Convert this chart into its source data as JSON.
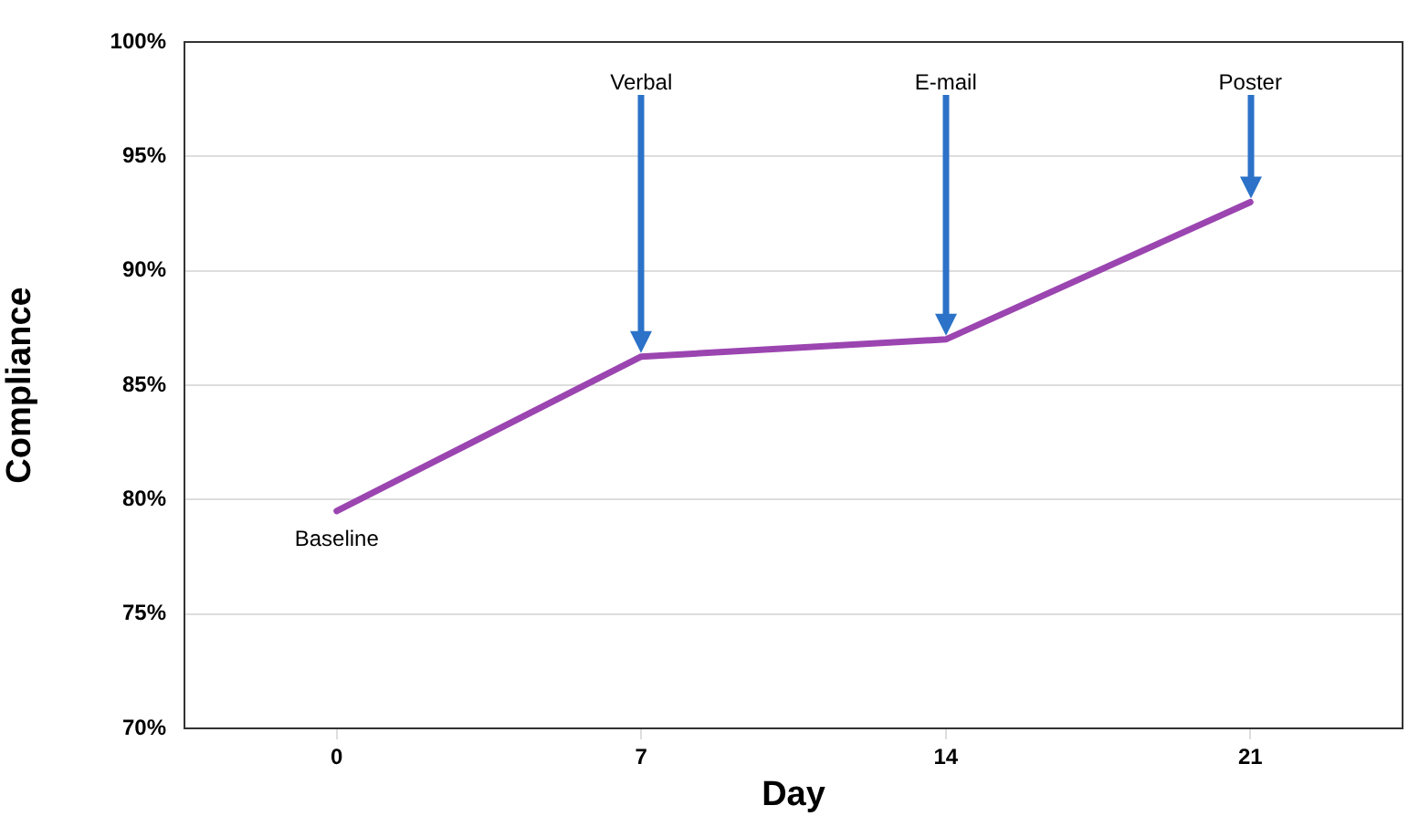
{
  "chart_data": {
    "type": "line",
    "xlabel": "Day",
    "ylabel": "Compliance",
    "x": [
      0,
      7,
      14,
      21
    ],
    "series": [
      {
        "color": "#9b45b0",
        "values": [
          79.5,
          86.25,
          87.0,
          93.0
        ]
      }
    ],
    "xlim": [
      -3.5,
      24.5
    ],
    "xticks": [
      0,
      7,
      14,
      21
    ],
    "ylim": [
      70,
      100
    ],
    "yticks": [
      {
        "value": 70,
        "label": "70%"
      },
      {
        "value": 75,
        "label": "75%"
      },
      {
        "value": 80,
        "label": "80%"
      },
      {
        "value": 85,
        "label": "85%"
      },
      {
        "value": 90,
        "label": "90%"
      },
      {
        "value": 95,
        "label": "95%"
      },
      {
        "value": 100,
        "label": "100%"
      }
    ],
    "grid": "y",
    "legend": false,
    "marker": "none",
    "line_style": "solid",
    "annotations": [
      {
        "text": "Baseline",
        "x": 0,
        "y": 79.5
      },
      {
        "text": "Verbal",
        "x": 7
      },
      {
        "text": "E-mail",
        "x": 14
      },
      {
        "text": "Poster",
        "x": 21
      }
    ]
  }
}
